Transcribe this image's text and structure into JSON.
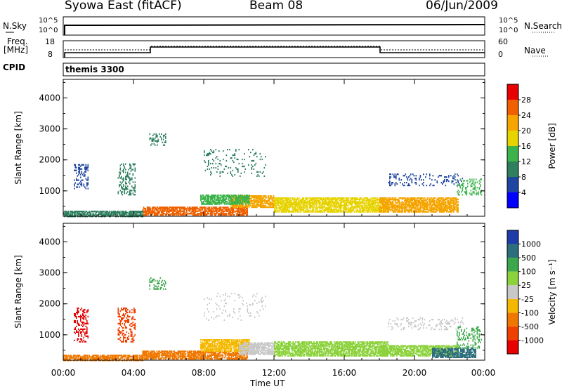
{
  "header": {
    "station": "Syowa East (fitACF)",
    "beam": "Beam 08",
    "date": "06/Jun/2009"
  },
  "panels": {
    "noise": {
      "left_label": "N.Sky",
      "left_ticks": [
        "10^5",
        "10^0"
      ],
      "right_label": "N.Search",
      "right_ticks": [
        "10^5",
        "10^0"
      ]
    },
    "freq": {
      "left_label_1": "Freq.",
      "left_label_2": "[MHz]",
      "left_ticks": [
        "18",
        "8"
      ],
      "right_label": "Nave",
      "right_ticks": [
        "60",
        "0"
      ]
    },
    "cpid": {
      "label": "CPID",
      "program": "themis 3300"
    }
  },
  "chart_data": [
    {
      "type": "heatmap",
      "name": "power",
      "ylabel": "Slant Range [km]",
      "xlabel": "Time UT",
      "x_ticks": [
        "00:00",
        "04:00",
        "08:00",
        "12:00",
        "16:00",
        "20:00",
        "00:00"
      ],
      "y_ticks": [
        1000,
        2000,
        3000,
        4000
      ],
      "ylim": [
        180,
        4600
      ],
      "xlim_hours": [
        0,
        24
      ],
      "colorbar": {
        "label": "Power [dB]",
        "ticks": [
          4,
          8,
          12,
          16,
          20,
          24,
          28
        ],
        "range": [
          0,
          32
        ]
      },
      "scatter_regions": [
        {
          "t": [
            0.6,
            1.4
          ],
          "r": [
            1100,
            1900
          ],
          "level": 7,
          "density": 0.35
        },
        {
          "t": [
            3.1,
            4.1
          ],
          "r": [
            900,
            1900
          ],
          "level": 8,
          "density": 0.35
        },
        {
          "t": [
            4.9,
            5.8
          ],
          "r": [
            2500,
            2900
          ],
          "level": 10,
          "density": 0.35
        },
        {
          "t": [
            8.0,
            11.5
          ],
          "r": [
            1500,
            2400
          ],
          "level": 8,
          "density": 0.12
        },
        {
          "t": [
            18.5,
            22.8
          ],
          "r": [
            1200,
            1600
          ],
          "level": 7,
          "density": 0.2
        },
        {
          "t": [
            22.4,
            23.8
          ],
          "r": [
            900,
            1400
          ],
          "level": 12,
          "density": 0.3
        }
      ],
      "bands": [
        {
          "t": [
            4.5,
            10.5
          ],
          "r": [
            250,
            500
          ],
          "level": 27
        },
        {
          "t": [
            9.5,
            12.0
          ],
          "r": [
            500,
            900
          ],
          "level": 20
        },
        {
          "t": [
            7.8,
            10.6
          ],
          "r": [
            600,
            900
          ],
          "level": 15
        },
        {
          "t": [
            12.0,
            18.5
          ],
          "r": [
            350,
            800
          ],
          "level": 17
        },
        {
          "t": [
            18.0,
            22.5
          ],
          "r": [
            350,
            800
          ],
          "level": 22
        },
        {
          "t": [
            0.0,
            4.5
          ],
          "r": [
            200,
            400
          ],
          "level": 10
        }
      ]
    },
    {
      "type": "heatmap",
      "name": "velocity",
      "ylabel": "Slant Range [km]",
      "xlabel": "Time UT",
      "x_ticks": [
        "00:00",
        "04:00",
        "08:00",
        "12:00",
        "16:00",
        "20:00",
        "00:00"
      ],
      "y_ticks": [
        1000,
        2000,
        3000,
        4000
      ],
      "ylim": [
        180,
        4600
      ],
      "xlim_hours": [
        0,
        24
      ],
      "colorbar": {
        "label": "Velocity [m s⁻¹]",
        "ticks": [
          "1000",
          "500",
          "100",
          "25",
          "-25",
          "-100",
          "-500",
          "-1000"
        ]
      },
      "scatter_regions": [
        {
          "t": [
            0.6,
            1.4
          ],
          "r": [
            800,
            1900
          ],
          "cls": 8,
          "density": 0.35
        },
        {
          "t": [
            3.1,
            4.1
          ],
          "r": [
            800,
            1900
          ],
          "cls": 7,
          "density": 0.35
        },
        {
          "t": [
            4.9,
            5.8
          ],
          "r": [
            2500,
            2900
          ],
          "cls": 2,
          "density": 0.3
        },
        {
          "t": [
            8.0,
            11.5
          ],
          "r": [
            1500,
            2400
          ],
          "cls": 4,
          "density": 0.1
        },
        {
          "t": [
            18.5,
            22.8
          ],
          "r": [
            1200,
            1600
          ],
          "cls": 4,
          "density": 0.2
        },
        {
          "t": [
            22.4,
            23.8
          ],
          "r": [
            600,
            1300
          ],
          "cls": 2,
          "density": 0.3
        }
      ],
      "bands": [
        {
          "t": [
            4.5,
            10.5
          ],
          "r": [
            250,
            500
          ],
          "cls": 6
        },
        {
          "t": [
            7.8,
            10.6
          ],
          "r": [
            500,
            900
          ],
          "cls": 5
        },
        {
          "t": [
            10.0,
            12.0
          ],
          "r": [
            400,
            800
          ],
          "cls": 4
        },
        {
          "t": [
            12.0,
            18.5
          ],
          "r": [
            350,
            800
          ],
          "cls": 3
        },
        {
          "t": [
            18.0,
            22.5
          ],
          "r": [
            350,
            700
          ],
          "cls": 3
        },
        {
          "t": [
            21.0,
            23.5
          ],
          "r": [
            300,
            600
          ],
          "cls": 1
        },
        {
          "t": [
            0.0,
            4.5
          ],
          "r": [
            200,
            400
          ],
          "cls": 6
        }
      ]
    }
  ],
  "colors": {
    "power": [
      "#0000ff",
      "#1e46a0",
      "#2f7f5f",
      "#3cb44b",
      "#e6d300",
      "#f5a400",
      "#f06000",
      "#e60000"
    ],
    "velocity": [
      "#1e3ca8",
      "#2d6e7d",
      "#3ca84b",
      "#8cd23c",
      "#c8c8c8",
      "#f5b800",
      "#f07800",
      "#f04000",
      "#e60000"
    ]
  }
}
